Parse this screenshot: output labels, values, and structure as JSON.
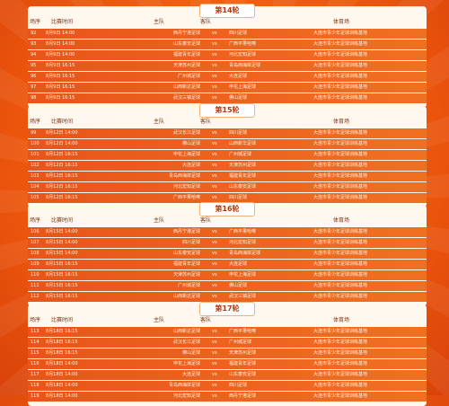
{
  "headers": {
    "no": "场序",
    "time": "比赛时间",
    "home": "主队",
    "away": "客队",
    "venue": "体育场"
  },
  "vs": "vs",
  "rounds": [
    {
      "title": "第14轮",
      "rows": [
        {
          "no": "92",
          "time": "8月9日 14:00",
          "home": "西丹宁港足球",
          "away": "四川足球",
          "venue": "大连市青少年足球训练基地"
        },
        {
          "no": "93",
          "time": "8月9日 14:00",
          "home": "山东泰安足球",
          "away": "广西平果哈嘹",
          "venue": "大连市青少年足球训练基地"
        },
        {
          "no": "94",
          "time": "8月9日 14:00",
          "home": "福建青年足球",
          "away": "河北宏知足球",
          "venue": "大连市青少年足球训练基地"
        },
        {
          "no": "95",
          "time": "8月9日 16:15",
          "home": "天津苏州足球",
          "away": "青岛西海岸足球",
          "venue": "大连市青少年足球训练基地"
        },
        {
          "no": "96",
          "time": "8月9日 16:15",
          "home": "广州城足球",
          "away": "大连足球",
          "venue": "大连市青少年足球训练基地"
        },
        {
          "no": "97",
          "time": "8月9日 16:15",
          "home": "山西新达足球",
          "away": "申花上海足球",
          "venue": "大连市青少年足球训练基地"
        },
        {
          "no": "98",
          "time": "8月9日 16:15",
          "home": "武汉三镇足球",
          "away": "佛山足球",
          "venue": "大连市青少年足球训练基地"
        }
      ]
    },
    {
      "title": "第15轮",
      "rows": [
        {
          "no": "99",
          "time": "8月12日 14:00",
          "home": "武汉长江足球",
          "away": "四川足球",
          "venue": "大连市青少年足球训练基地"
        },
        {
          "no": "100",
          "time": "8月12日 14:00",
          "home": "佛山足球",
          "away": "山西新华足球",
          "venue": "大连市青少年足球训练基地"
        },
        {
          "no": "101",
          "time": "8月12日 16:15",
          "home": "申花上海足球",
          "away": "广州城足球",
          "venue": "大连市青少年足球训练基地"
        },
        {
          "no": "102",
          "time": "8月12日 16:15",
          "home": "大连足球",
          "away": "天津苏州足球",
          "venue": "大连市青少年足球训练基地"
        },
        {
          "no": "103",
          "time": "8月12日 16:15",
          "home": "青岛西海岸足球",
          "away": "福建青年足球",
          "venue": "大连市青少年足球训练基地"
        },
        {
          "no": "104",
          "time": "8月12日 16:15",
          "home": "河北宏知足球",
          "away": "山东泰安足球",
          "venue": "大连市青少年足球训练基地"
        },
        {
          "no": "105",
          "time": "8月12日 16:15",
          "home": "广西平果哈嘹",
          "away": "四川足球",
          "venue": "大连市青少年足球训练基地"
        }
      ]
    },
    {
      "title": "第16轮",
      "rows": [
        {
          "no": "106",
          "time": "8月15日 14:00",
          "home": "西丹宁港足球",
          "away": "广西平果哈嘹",
          "venue": "大连市青少年足球训练基地"
        },
        {
          "no": "107",
          "time": "8月15日 14:00",
          "home": "四川足球",
          "away": "河北宏知足球",
          "venue": "大连市青少年足球训练基地"
        },
        {
          "no": "108",
          "time": "8月15日 14:00",
          "home": "山东泰安足球",
          "away": "青岛西海岸足球",
          "venue": "大连市青少年足球训练基地"
        },
        {
          "no": "109",
          "time": "8月15日 16:15",
          "home": "福建青年足球",
          "away": "大连足球",
          "venue": "大连市青少年足球训练基地"
        },
        {
          "no": "110",
          "time": "8月15日 16:15",
          "home": "天津苏州足球",
          "away": "申花上海足球",
          "venue": "大连市青少年足球训练基地"
        },
        {
          "no": "111",
          "time": "8月15日 16:15",
          "home": "广州城足球",
          "away": "佛山足球",
          "venue": "大连市青少年足球训练基地"
        },
        {
          "no": "112",
          "time": "8月15日 16:15",
          "home": "山西新达足球",
          "away": "武汉三镇足球",
          "venue": "大连市青少年足球训练基地"
        }
      ]
    },
    {
      "title": "第17轮",
      "rows": [
        {
          "no": "113",
          "time": "8月18日 16:15",
          "home": "山西新达足球",
          "away": "广西平果哈嘹",
          "venue": "大连市青少年足球训练基地"
        },
        {
          "no": "114",
          "time": "8月18日 16:15",
          "home": "武汉长江足球",
          "away": "广州城足球",
          "venue": "大连市青少年足球训练基地"
        },
        {
          "no": "115",
          "time": "8月18日 16:15",
          "home": "佛山足球",
          "away": "天津苏州足球",
          "venue": "大连市青少年足球训练基地"
        },
        {
          "no": "116",
          "time": "8月18日 14:00",
          "home": "申花上海足球",
          "away": "福建青年足球",
          "venue": "大连市青少年足球训练基地"
        },
        {
          "no": "117",
          "time": "8月18日 14:00",
          "home": "大连足球",
          "away": "山东泰安足球",
          "venue": "大连市青少年足球训练基地"
        },
        {
          "no": "118",
          "time": "8月18日 14:00",
          "home": "青岛西海岸足球",
          "away": "四川足球",
          "venue": "大连市青少年足球训练基地"
        },
        {
          "no": "119",
          "time": "8月18日 14:00",
          "home": "河北宏知足球",
          "away": "西丹宁港足球",
          "venue": "大连市青少年足球训练基地"
        }
      ]
    }
  ]
}
